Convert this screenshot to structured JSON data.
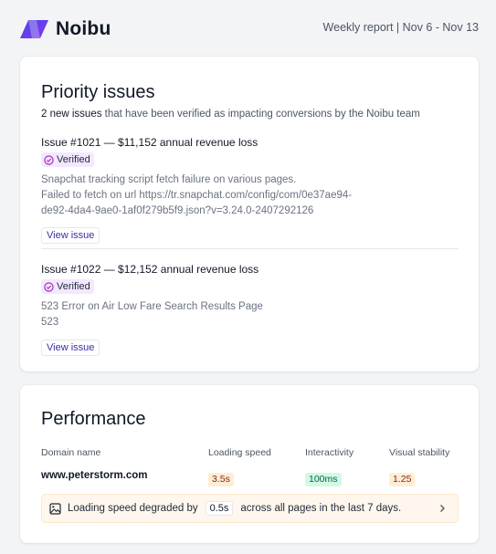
{
  "header": {
    "brand": "Noibu",
    "report_range": "Weekly report | Nov 6 - Nov 13",
    "brand_colors": [
      "#4f46e5",
      "#7c3aed"
    ]
  },
  "priority": {
    "title": "Priority issues",
    "subtitle_strong": "2 new issues",
    "subtitle_rest": " that have been verified as impacting conversions by the Noibu team",
    "issues": [
      {
        "title": "Issue #1021 — $11,152 annual revenue loss",
        "badge": "Verified",
        "desc_1": "Snapchat tracking script fetch failure on various pages.",
        "desc_2": "Failed to fetch on url https://tr.snapchat.com/config/com/0e37ae94-",
        "desc_3": "de92-4da4-9ae0-1af0f279b5f9.json?v=3.24.0-2407292126",
        "button": "View issue"
      },
      {
        "title": "Issue #1022 — $12,152 annual revenue loss",
        "badge": "Verified",
        "desc_1": "523 Error on Air Low Fare Search Results Page",
        "desc_2": "523",
        "button": "View issue"
      }
    ]
  },
  "performance": {
    "title": "Performance",
    "columns": [
      "Domain name",
      "Loading speed",
      "Interactivity",
      "Visual stability"
    ],
    "row": {
      "domain": "www.peterstorm.com",
      "loading_speed": "3.5s",
      "interactivity": "100ms",
      "visual_stability": "1.25"
    },
    "alert": {
      "prefix": "Loading speed degraded by",
      "value": "0.5s",
      "suffix": "across all pages in the last 7 days.",
      "icon": "image-icon"
    }
  }
}
